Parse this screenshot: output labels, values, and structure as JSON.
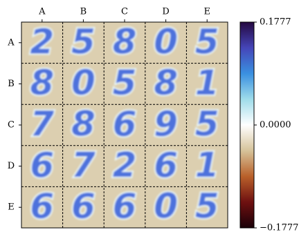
{
  "chart_data": {
    "type": "image_grid",
    "x_categories": [
      "A",
      "B",
      "C",
      "D",
      "E"
    ],
    "y_categories": [
      "A",
      "B",
      "C",
      "D",
      "E"
    ],
    "cells": [
      [
        "2",
        "5",
        "8",
        "0",
        "5"
      ],
      [
        "8",
        "0",
        "5",
        "8",
        "1"
      ],
      [
        "7",
        "8",
        "6",
        "9",
        "5"
      ],
      [
        "6",
        "7",
        "2",
        "6",
        "1"
      ],
      [
        "6",
        "6",
        "6",
        "0",
        "5"
      ]
    ],
    "background": "#dccfb0",
    "colormap": [
      "#1a0008",
      "#6e1010",
      "#b9602a",
      "#d6c39a",
      "#ffffff",
      "#9fdcea",
      "#3a90e0",
      "#4545b8",
      "#250840"
    ],
    "clim": [
      -0.1777,
      0.1777
    ],
    "cticks": [
      {
        "value": -0.1777,
        "label": "−0.1777"
      },
      {
        "value": 0,
        "label": "0.0000"
      },
      0.1777
    ]
  }
}
